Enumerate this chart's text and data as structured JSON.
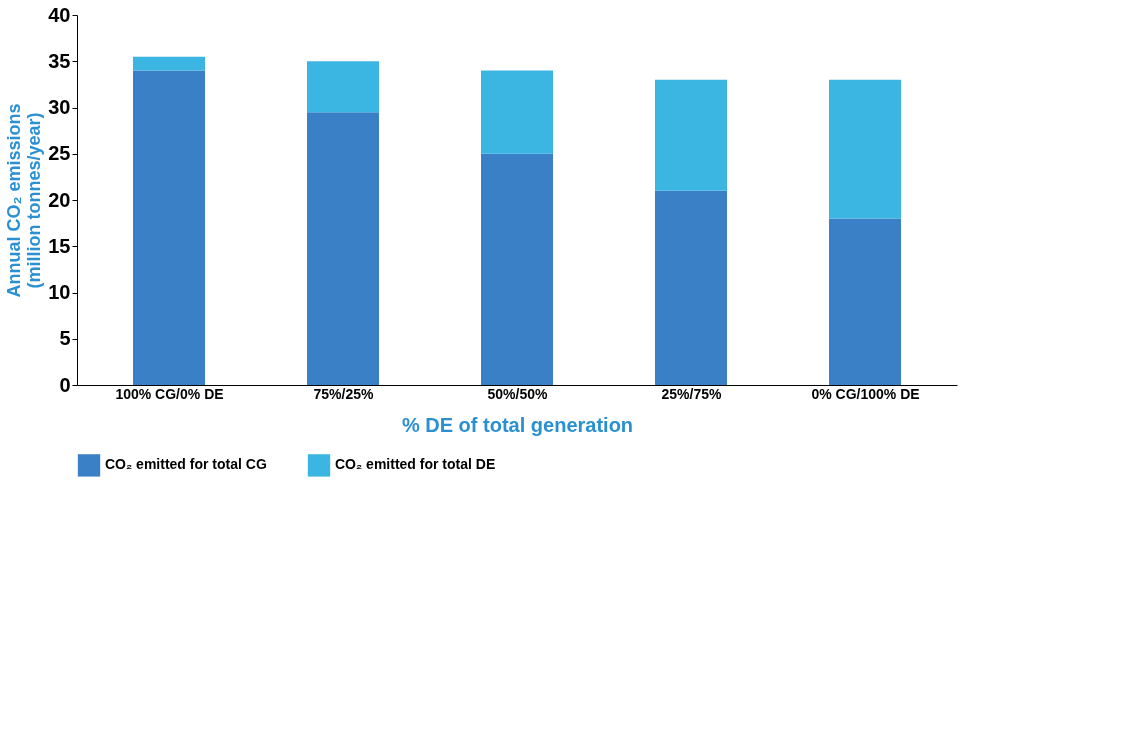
{
  "chart_data": {
    "type": "bar",
    "stacked": true,
    "xlabel": "% DE of total generation",
    "ylabel": "Annual CO₂ emissions\n(million tonnes/year)",
    "categories": [
      "100% CG/0% DE",
      "75%/25%",
      "50%/50%",
      "25%/75%",
      "0% CG/100% DE"
    ],
    "series": [
      {
        "name": "CO₂ emitted for total CG",
        "color": "#3a80c6",
        "values": [
          34,
          29.5,
          25,
          21,
          18
        ]
      },
      {
        "name": "CO₂ emitted for total DE",
        "color": "#3bb5e2",
        "values": [
          1.5,
          5.5,
          9,
          12,
          15
        ]
      }
    ],
    "ylim": [
      0,
      40
    ],
    "yticks": [
      0,
      5,
      10,
      15,
      20,
      25,
      30,
      35,
      40
    ],
    "grid": false,
    "legend": "bottom"
  }
}
